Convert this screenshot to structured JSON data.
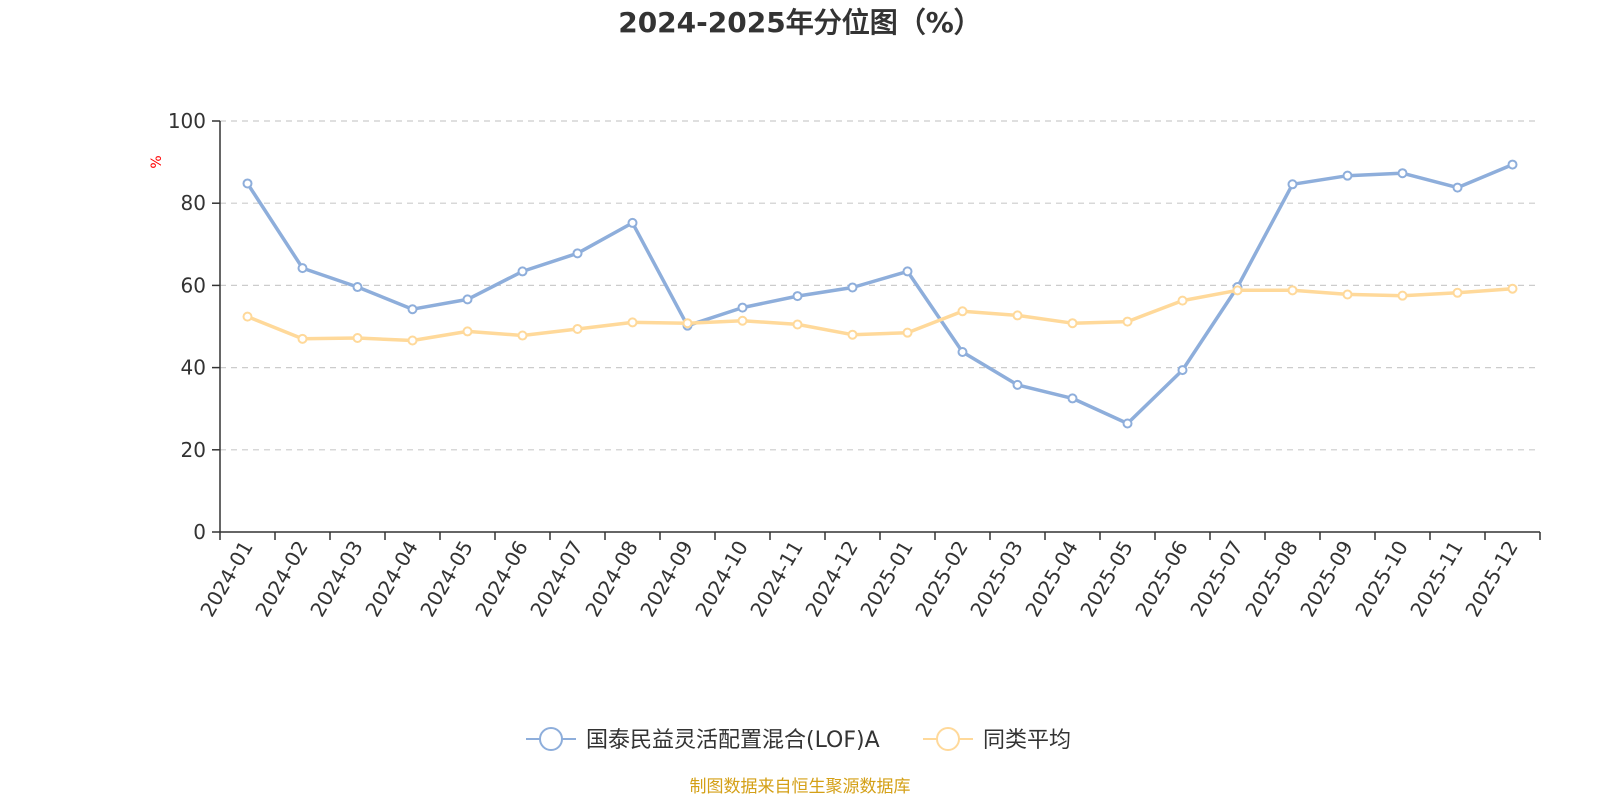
{
  "chart_data": {
    "type": "line",
    "title": "2024-2025年分位图（%）",
    "ylabel": "%",
    "ylim": [
      0,
      100
    ],
    "yticks": [
      0,
      20,
      40,
      60,
      80,
      100
    ],
    "grid": true,
    "legend_position": "bottom",
    "x": [
      "2024-01",
      "2024-02",
      "2024-03",
      "2024-04",
      "2024-05",
      "2024-06",
      "2024-07",
      "2024-08",
      "2024-09",
      "2024-10",
      "2024-11",
      "2024-12",
      "2025-01",
      "2025-02",
      "2025-03",
      "2025-04",
      "2025-05",
      "2025-06",
      "2025-07",
      "2025-08",
      "2025-09",
      "2025-10",
      "2025-11",
      "2025-12"
    ],
    "series": [
      {
        "name": "国泰民益灵活配置混合(LOF)A",
        "color": "#8eaedb",
        "values": [
          84.8,
          64.2,
          59.6,
          54.2,
          56.6,
          63.4,
          67.8,
          75.2,
          50.2,
          54.6,
          57.4,
          59.5,
          63.4,
          43.8,
          35.8,
          32.5,
          26.4,
          39.4,
          59.6,
          84.6,
          86.7,
          87.3,
          83.8,
          89.4
        ]
      },
      {
        "name": "同类平均",
        "color": "#ffd99a",
        "values": [
          52.4,
          47.0,
          47.2,
          46.6,
          48.8,
          47.8,
          49.4,
          51.0,
          50.8,
          51.4,
          50.5,
          48.0,
          48.5,
          53.7,
          52.7,
          50.8,
          51.2,
          56.3,
          58.8,
          58.8,
          57.8,
          57.5,
          58.2,
          59.2
        ]
      }
    ]
  },
  "source": "制图数据来自恒生聚源数据库"
}
